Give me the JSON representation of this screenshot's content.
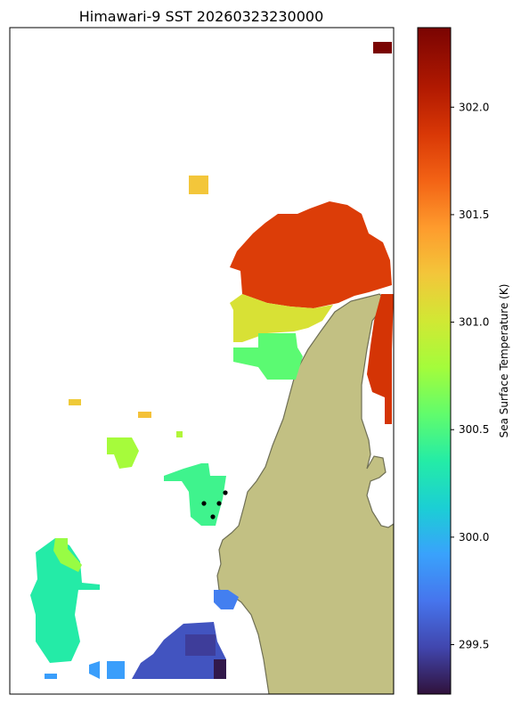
{
  "chart_data": {
    "type": "heatmap",
    "title": "Himawari-9 SST 20260323230000",
    "colorbar": {
      "label": "Sea Surface Temperature (K)",
      "colormap": "turbo",
      "vmin": 299.27,
      "vmax": 302.37,
      "ticks": [
        299.5,
        300.0,
        300.5,
        301.0,
        301.5,
        302.0
      ],
      "tick_labels": [
        "299.5",
        "300.0",
        "300.5",
        "301.0",
        "301.5",
        "302.0"
      ]
    },
    "map": {
      "land_color": "#c2c083",
      "coastline_color": "#6f6f55",
      "grid": false
    },
    "regions": [
      {
        "name": "north-east-corner",
        "value": 302.37
      },
      {
        "name": "small-north-patch",
        "value": 301.22
      },
      {
        "name": "large-north-east-blob",
        "value": 301.85
      },
      {
        "name": "north-east-blob-south-edge",
        "value": 301.05
      },
      {
        "name": "north-east-blob-base",
        "value": 300.55
      },
      {
        "name": "east-strip",
        "value": 301.9
      },
      {
        "name": "tiny-west-patch",
        "value": 301.2
      },
      {
        "name": "tiny-centre-patch",
        "value": 301.25
      },
      {
        "name": "tiny-centre-dot",
        "value": 300.85
      },
      {
        "name": "west-centre-patch",
        "value": 300.8
      },
      {
        "name": "centre-patch",
        "value": 300.45
      },
      {
        "name": "south-west-blob",
        "value": 300.35
      },
      {
        "name": "south-west-blob-top",
        "value": 300.75
      },
      {
        "name": "south-blob",
        "value": 299.55
      },
      {
        "name": "south-blob-core",
        "value": 299.45
      },
      {
        "name": "south-blob-corner",
        "value": 299.3
      },
      {
        "name": "south-coast-patch",
        "value": 299.75
      },
      {
        "name": "south-west-small-patch",
        "value": 299.9
      }
    ],
    "markers": [
      {
        "name": "buoy-1"
      },
      {
        "name": "buoy-2"
      },
      {
        "name": "buoy-3"
      },
      {
        "name": "buoy-4"
      }
    ]
  }
}
